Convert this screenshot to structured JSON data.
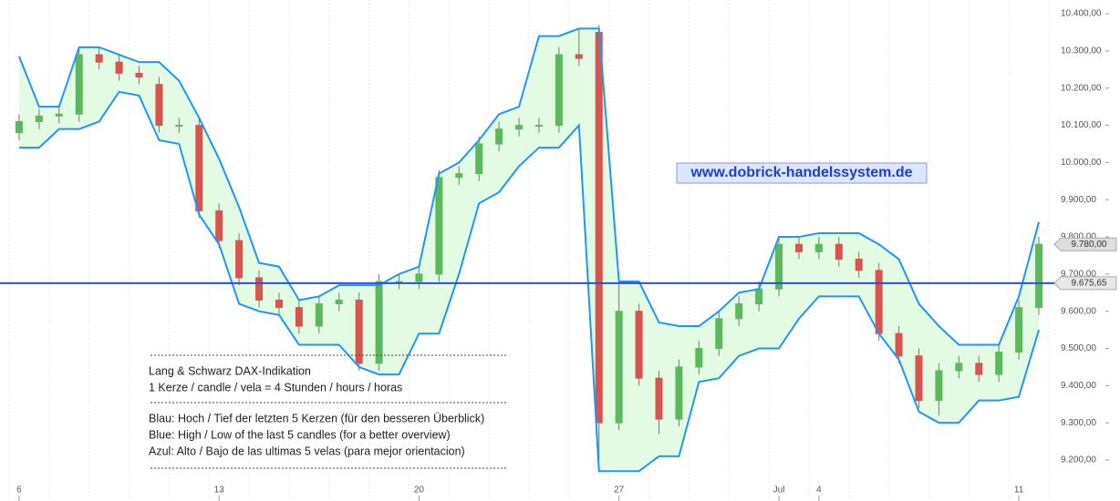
{
  "chart_data": {
    "type": "candlestick",
    "categories": [
      "6",
      null,
      null,
      null,
      null,
      null,
      null,
      null,
      null,
      null,
      "13",
      null,
      null,
      null,
      null,
      null,
      null,
      null,
      null,
      null,
      "20",
      null,
      null,
      null,
      null,
      null,
      null,
      null,
      null,
      null,
      "27",
      null,
      null,
      null,
      null,
      null,
      null,
      null,
      "Jul",
      null,
      "4",
      null,
      null,
      null,
      null,
      null,
      null,
      null,
      null,
      null,
      "11",
      null
    ],
    "open": [
      10080,
      10110,
      10125,
      10130,
      10290,
      10270,
      10240,
      10210,
      10100,
      10100,
      9870,
      9790,
      9690,
      9630,
      9610,
      9560,
      9620,
      9630,
      9460,
      9680,
      9680,
      9700,
      9960,
      9970,
      10050,
      10090,
      10100,
      10100,
      10290,
      10350,
      9300,
      9600,
      9420,
      9310,
      9450,
      9500,
      9580,
      9620,
      9660,
      9780,
      9760,
      9780,
      9740,
      9710,
      9540,
      9480,
      9360,
      9440,
      9460,
      9430,
      9490,
      9610
    ],
    "high": [
      10130,
      10145,
      10150,
      10310,
      10310,
      10290,
      10260,
      10230,
      10120,
      10120,
      9890,
      9810,
      9710,
      9650,
      9630,
      9640,
      9650,
      9650,
      9700,
      9700,
      9720,
      9980,
      9990,
      10070,
      10110,
      10120,
      10120,
      10310,
      10360,
      10370,
      9680,
      9620,
      9440,
      9470,
      9520,
      9600,
      9640,
      9680,
      9800,
      9800,
      9800,
      9800,
      9760,
      9730,
      9560,
      9500,
      9460,
      9480,
      9480,
      9510,
      9630,
      9800
    ],
    "low": [
      10060,
      10090,
      10105,
      10110,
      10250,
      10220,
      10210,
      10080,
      10080,
      9850,
      9770,
      9670,
      9610,
      9590,
      9540,
      9540,
      9600,
      9440,
      9440,
      9660,
      9660,
      9680,
      9940,
      9950,
      10030,
      10070,
      10080,
      10080,
      10260,
      9200,
      9280,
      9400,
      9270,
      9290,
      9430,
      9480,
      9560,
      9600,
      9640,
      9740,
      9740,
      9720,
      9690,
      9520,
      9460,
      9340,
      9320,
      9420,
      9410,
      9410,
      9470,
      9590
    ],
    "close": [
      10110,
      10125,
      10130,
      10290,
      10270,
      10240,
      10230,
      10100,
      10100,
      9870,
      9790,
      9690,
      9630,
      9610,
      9560,
      9620,
      9630,
      9460,
      9680,
      9680,
      9700,
      9960,
      9970,
      10050,
      10090,
      10100,
      10100,
      10290,
      10280,
      9300,
      9600,
      9420,
      9310,
      9450,
      9500,
      9580,
      9620,
      9660,
      9780,
      9760,
      9780,
      9740,
      9710,
      9540,
      9480,
      9360,
      9440,
      9460,
      9430,
      9490,
      9610,
      9780
    ],
    "up_color": "#5cb85c",
    "down_color": "#d9534f",
    "bands": [
      {
        "color": "#2196f3",
        "values": [
          10285,
          10150,
          10150,
          10310,
          10310,
          10290,
          10270,
          10270,
          10220,
          10120,
          10010,
          9880,
          9730,
          9720,
          9630,
          9640,
          9670,
          9670,
          9670,
          9700,
          9720,
          9970,
          10000,
          10060,
          10130,
          10150,
          10340,
          10340,
          10360,
          10360,
          9680,
          9680,
          9570,
          9560,
          9560,
          9600,
          9650,
          9660,
          9800,
          9800,
          9810,
          9810,
          9810,
          9780,
          9740,
          9620,
          9560,
          9510,
          9510,
          9510,
          9640,
          9840
        ]
      },
      {
        "color": "#2196f3",
        "values": [
          10040,
          10040,
          10090,
          10090,
          10110,
          10190,
          10180,
          10060,
          10050,
          9860,
          9780,
          9620,
          9600,
          9590,
          9510,
          9510,
          9510,
          9450,
          9430,
          9430,
          9540,
          9540,
          9700,
          9890,
          9920,
          9990,
          10040,
          10040,
          10100,
          9170,
          9170,
          9170,
          9210,
          9210,
          9410,
          9420,
          9480,
          9500,
          9500,
          9580,
          9640,
          9640,
          9640,
          9540,
          9470,
          9330,
          9300,
          9300,
          9360,
          9360,
          9370,
          9550
        ]
      }
    ],
    "band_fill": "#e3fbe3",
    "price_line": {
      "value": 9675.65,
      "label": "9.675,65",
      "color": "#2b4fd6"
    },
    "last_price": {
      "value": 9780,
      "label": "9.780,00"
    },
    "ylim": [
      9151,
      10437
    ],
    "yticks": [
      {
        "value": 9200,
        "label": "9.200,00"
      },
      {
        "value": 9300,
        "label": "9.300,00"
      },
      {
        "value": 9400,
        "label": "9.400,00"
      },
      {
        "value": 9500,
        "label": "9.500,00"
      },
      {
        "value": 9600,
        "label": "9.600,00"
      },
      {
        "value": 9700,
        "label": "9.700,00"
      },
      {
        "value": 9800,
        "label": "9.800,00"
      },
      {
        "value": 9900,
        "label": "9.900,00"
      },
      {
        "value": 10000,
        "label": "10.000,00"
      },
      {
        "value": 10100,
        "label": "10.100,00"
      },
      {
        "value": 10200,
        "label": "10.200,00"
      },
      {
        "value": 10300,
        "label": "10.300,00"
      },
      {
        "value": 10400,
        "label": "10.400,00"
      }
    ],
    "watermark": "www.dobrick-handelssystem.de",
    "notes": [
      [
        "Lang & Schwarz DAX-Indikation",
        "1 Kerze / candle / vela = 4 Stunden / hours / horas"
      ],
      [
        "Blau: Hoch / Tief der letzten 5 Kerzen (für den besseren Überblick)",
        "Blue: High / Low of the last 5 candles (for a better overview)",
        "Azul: Alto / Bajo de las ultimas 5 velas (para mejor orientacion)"
      ]
    ]
  }
}
